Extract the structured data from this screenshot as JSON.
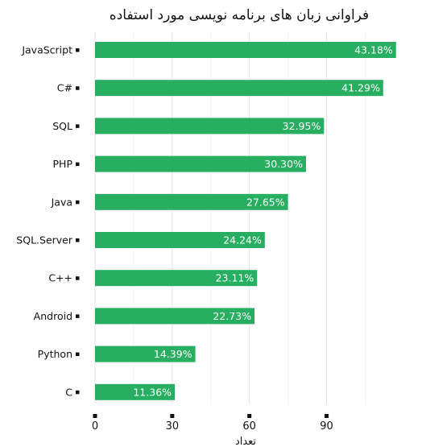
{
  "chart_data": {
    "type": "bar",
    "orientation": "horizontal",
    "title": "فراوانی زبان های برنامه نویسی مورد استفاده",
    "xlabel": "تعداد",
    "ylabel": "",
    "categories": [
      "JavaScript",
      "C#",
      "SQL",
      "PHP",
      "Java",
      "SQL.Server",
      "C++",
      "Android",
      "Python",
      "C"
    ],
    "values": [
      117,
      112,
      89,
      82,
      75,
      66,
      63,
      62,
      39,
      31
    ],
    "data_labels": [
      "43.18%",
      "41.29%",
      "32.95%",
      "30.30%",
      "27.65%",
      "24.24%",
      "23.11%",
      "22.73%",
      "14.39%",
      "11.36%"
    ],
    "xlim": [
      0,
      118
    ],
    "xticks": [
      0,
      30,
      60,
      90
    ],
    "xtick_labels": [
      "0",
      "30",
      "60",
      "90"
    ],
    "grid": true,
    "legend": "none",
    "bar_color": "#27ae60"
  }
}
